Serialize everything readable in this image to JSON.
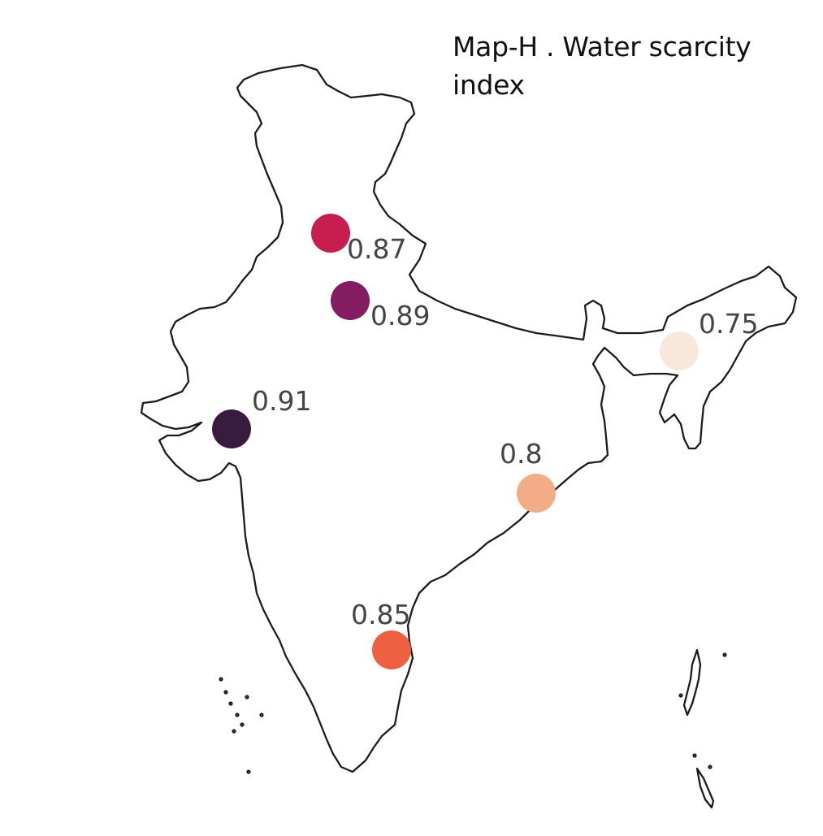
{
  "title": "Map-H . Water scarcity index",
  "region": "India",
  "points": [
    {
      "id": "p1",
      "value": "0.87",
      "color": "#c81d4f"
    },
    {
      "id": "p2",
      "value": "0.89",
      "color": "#831c60"
    },
    {
      "id": "p3",
      "value": "0.91",
      "color": "#3a1b40"
    },
    {
      "id": "p4",
      "value": "0.75",
      "color": "#f8e8dc"
    },
    {
      "id": "p5",
      "value": "0.8",
      "color": "#f4ac87"
    },
    {
      "id": "p6",
      "value": "0.85",
      "color": "#ee6041"
    }
  ]
}
